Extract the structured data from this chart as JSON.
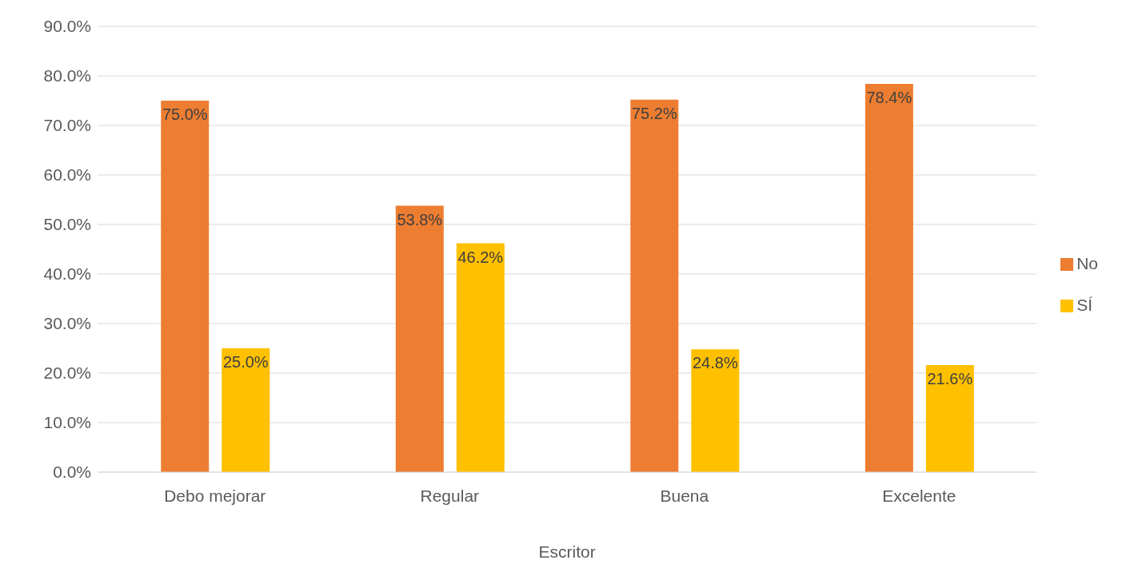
{
  "chart_data": {
    "type": "bar",
    "xlabel": "Escritor",
    "categories": [
      "Debo mejorar",
      "Regular",
      "Buena",
      "Excelente"
    ],
    "series": [
      {
        "name": "No",
        "color": "#ed7d31",
        "values": [
          75.0,
          53.8,
          75.2,
          78.4
        ],
        "value_labels": [
          "75.0%",
          "53.8%",
          "75.2%",
          "78.4%"
        ]
      },
      {
        "name": "SÍ",
        "color": "#ffc000",
        "values": [
          25.0,
          46.2,
          24.8,
          21.6
        ],
        "value_labels": [
          "25.0%",
          "46.2%",
          "24.8%",
          "21.6%"
        ]
      }
    ],
    "ylim": [
      0,
      90
    ],
    "yticks": [
      {
        "value": 0,
        "label": "0.0%"
      },
      {
        "value": 10,
        "label": "10.0%"
      },
      {
        "value": 20,
        "label": "20.0%"
      },
      {
        "value": 30,
        "label": "30.0%"
      },
      {
        "value": 40,
        "label": "40.0%"
      },
      {
        "value": 50,
        "label": "50.0%"
      },
      {
        "value": 60,
        "label": "60.0%"
      },
      {
        "value": 70,
        "label": "70.0%"
      },
      {
        "value": 80,
        "label": "80.0%"
      },
      {
        "value": 90,
        "label": "90.0%"
      }
    ],
    "grid": "y",
    "legend": "right"
  }
}
